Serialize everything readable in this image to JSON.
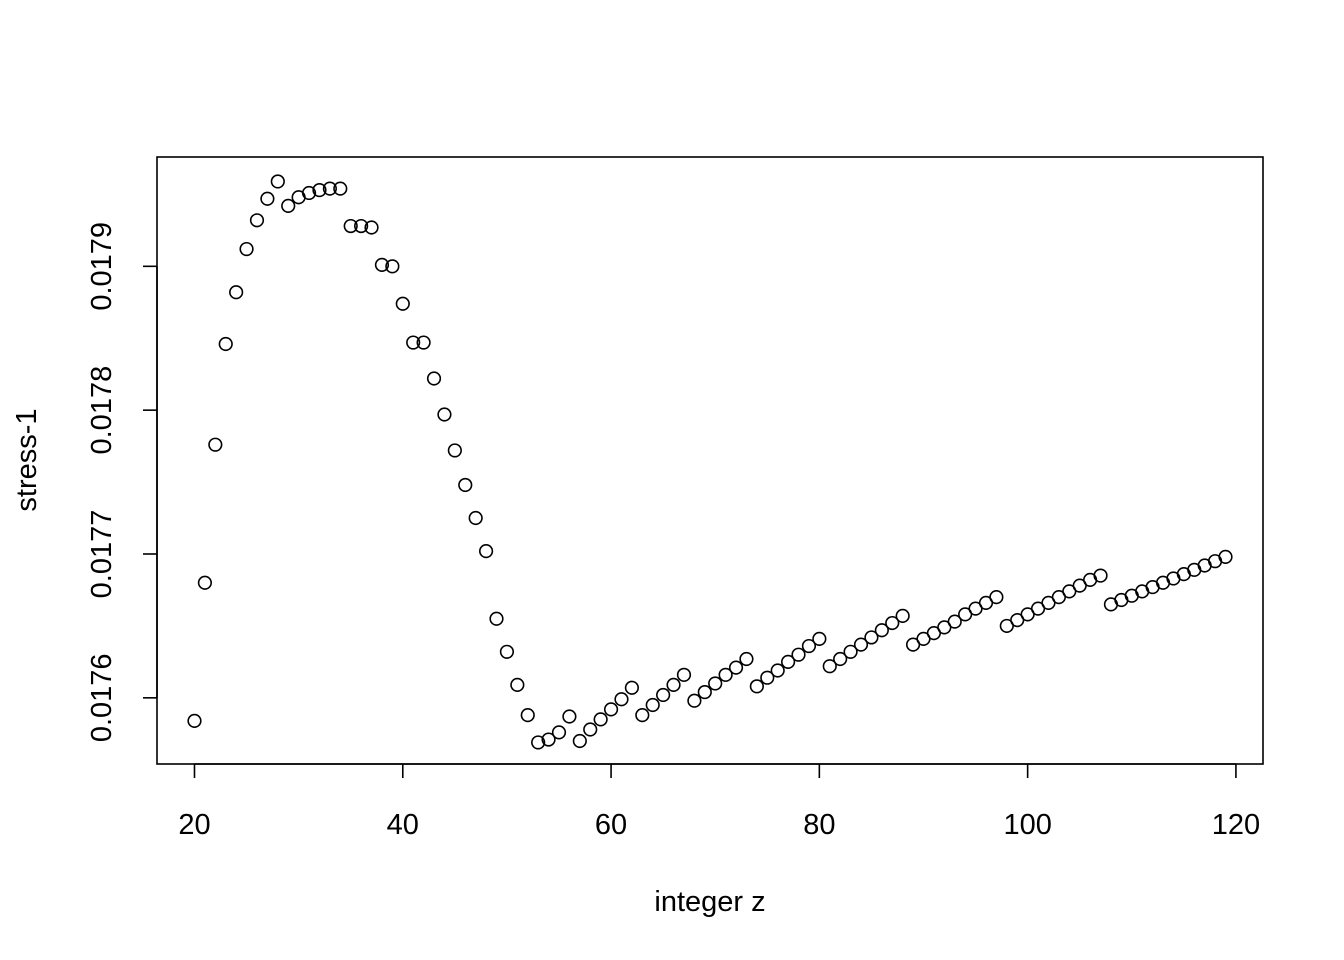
{
  "chart_data": {
    "type": "scatter",
    "title": "",
    "xlabel": "integer z",
    "ylabel": "stress-1",
    "xlim": [
      16.4,
      122.6
    ],
    "ylim": [
      0.017554,
      0.017976
    ],
    "xticks": [
      20,
      40,
      60,
      80,
      100,
      120
    ],
    "xtick_labels": [
      "20",
      "40",
      "60",
      "80",
      "100",
      "120"
    ],
    "yticks": [
      0.0176,
      0.0177,
      0.0178,
      0.0179
    ],
    "ytick_labels": [
      "0.0176",
      "0.0177",
      "0.0178",
      "0.0179"
    ],
    "grid": false,
    "legend": null,
    "marker": "open-circle",
    "point_color": "#000000",
    "x": [
      20,
      21,
      22,
      23,
      24,
      25,
      26,
      27,
      28,
      29,
      30,
      31,
      32,
      33,
      34,
      35,
      36,
      37,
      38,
      39,
      40,
      41,
      42,
      43,
      44,
      45,
      46,
      47,
      48,
      49,
      50,
      51,
      52,
      53,
      54,
      55,
      56,
      57,
      58,
      59,
      60,
      61,
      62,
      63,
      64,
      65,
      66,
      67,
      68,
      69,
      70,
      71,
      72,
      73,
      74,
      75,
      76,
      77,
      78,
      79,
      80,
      81,
      82,
      83,
      84,
      85,
      86,
      87,
      88,
      89,
      90,
      91,
      92,
      93,
      94,
      95,
      96,
      97,
      98,
      99,
      100,
      101,
      102,
      103,
      104,
      105,
      106,
      107,
      108,
      109,
      110,
      111,
      112,
      113,
      114,
      115,
      116,
      117,
      118,
      119
    ],
    "y": [
      0.017584,
      0.01768,
      0.017776,
      0.017846,
      0.017882,
      0.017912,
      0.017932,
      0.017947,
      0.017959,
      0.017942,
      0.017948,
      0.017951,
      0.017953,
      0.017954,
      0.017954,
      0.017928,
      0.017928,
      0.017927,
      0.017901,
      0.0179,
      0.017874,
      0.017847,
      0.017847,
      0.017822,
      0.017797,
      0.017772,
      0.017748,
      0.017725,
      0.017702,
      0.017655,
      0.017632,
      0.017609,
      0.017588,
      0.017569,
      0.017571,
      0.017576,
      0.017587,
      0.01757,
      0.017578,
      0.017585,
      0.017592,
      0.017599,
      0.017607,
      0.017588,
      0.017595,
      0.017602,
      0.017609,
      0.017616,
      0.017598,
      0.017604,
      0.01761,
      0.017616,
      0.017621,
      0.017627,
      0.017608,
      0.017614,
      0.017619,
      0.017625,
      0.01763,
      0.017636,
      0.017641,
      0.017622,
      0.017627,
      0.017632,
      0.017637,
      0.017642,
      0.017647,
      0.017652,
      0.017657,
      0.017637,
      0.017641,
      0.017645,
      0.017649,
      0.017653,
      0.017658,
      0.017662,
      0.017666,
      0.01767,
      0.01765,
      0.017654,
      0.017658,
      0.017662,
      0.017666,
      0.01767,
      0.017674,
      0.017678,
      0.017682,
      0.017685,
      0.017665,
      0.017668,
      0.017671,
      0.017674,
      0.017677,
      0.01768,
      0.017683,
      0.017686,
      0.017689,
      0.017692,
      0.017695,
      0.017698
    ]
  }
}
